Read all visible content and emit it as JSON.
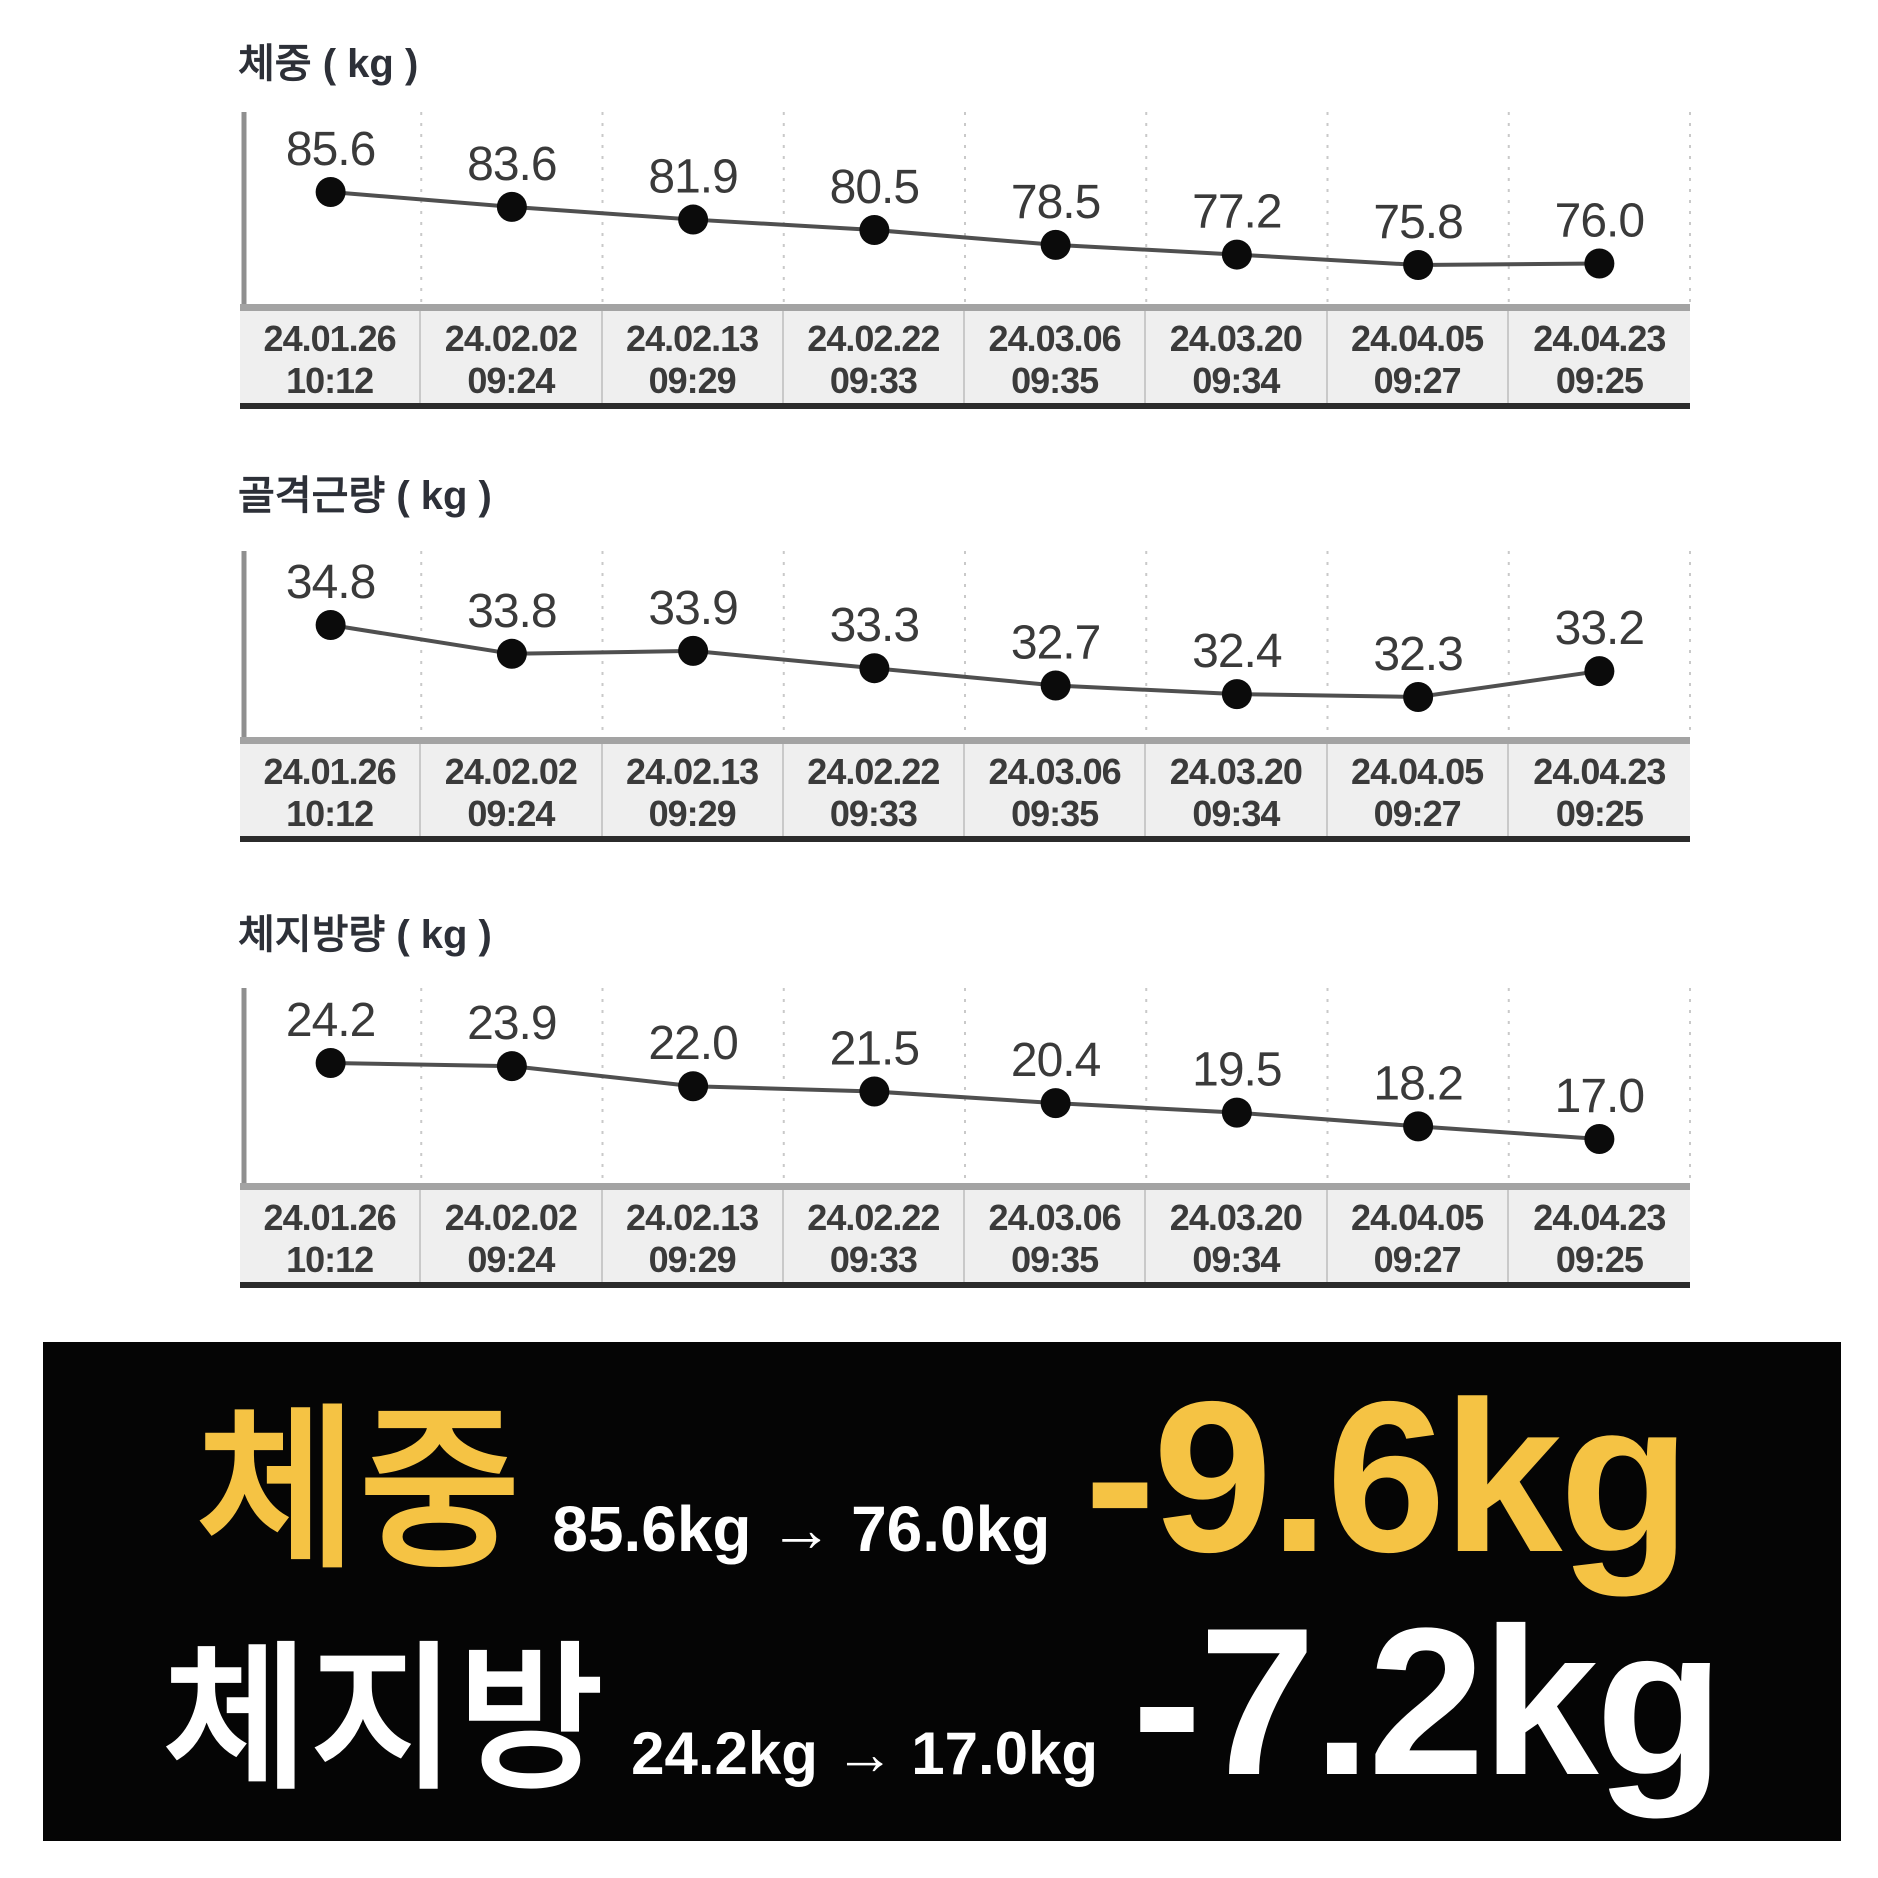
{
  "axis": {
    "dates": [
      "24.01.26",
      "24.02.02",
      "24.02.13",
      "24.02.22",
      "24.03.06",
      "24.03.20",
      "24.04.05",
      "24.04.23"
    ],
    "times": [
      "10:12",
      "09:24",
      "09:29",
      "09:33",
      "09:35",
      "09:34",
      "09:27",
      "09:25"
    ]
  },
  "chart_data": [
    {
      "type": "line",
      "title": "체중 ( kg )",
      "unit": "kg",
      "categories": [
        "24.01.26 10:12",
        "24.02.02 09:24",
        "24.02.13 09:29",
        "24.02.22 09:33",
        "24.03.06 09:35",
        "24.03.20 09:34",
        "24.04.05 09:27",
        "24.04.23 09:25"
      ],
      "values": [
        85.6,
        83.6,
        81.9,
        80.5,
        78.5,
        77.2,
        75.8,
        76.0
      ],
      "labels": [
        "85.6",
        "83.6",
        "81.9",
        "80.5",
        "78.5",
        "77.2",
        "75.8",
        "76.0"
      ],
      "ylim": [
        75.8,
        85.6
      ],
      "grid": "dotted-vertical",
      "legend": "none"
    },
    {
      "type": "line",
      "title": "골격근량 ( kg )",
      "unit": "kg",
      "categories": [
        "24.01.26 10:12",
        "24.02.02 09:24",
        "24.02.13 09:29",
        "24.02.22 09:33",
        "24.03.06 09:35",
        "24.03.20 09:34",
        "24.04.05 09:27",
        "24.04.23 09:25"
      ],
      "values": [
        34.8,
        33.8,
        33.9,
        33.3,
        32.7,
        32.4,
        32.3,
        33.2
      ],
      "labels": [
        "34.8",
        "33.8",
        "33.9",
        "33.3",
        "32.7",
        "32.4",
        "32.3",
        "33.2"
      ],
      "ylim": [
        32.3,
        34.8
      ],
      "grid": "dotted-vertical",
      "legend": "none"
    },
    {
      "type": "line",
      "title": "체지방량 ( kg )",
      "unit": "kg",
      "categories": [
        "24.01.26 10:12",
        "24.02.02 09:24",
        "24.02.13 09:29",
        "24.02.22 09:33",
        "24.03.06 09:35",
        "24.03.20 09:34",
        "24.04.05 09:27",
        "24.04.23 09:25"
      ],
      "values": [
        24.2,
        23.9,
        22.0,
        21.5,
        20.4,
        19.5,
        18.2,
        17.0
      ],
      "labels": [
        "24.2",
        "23.9",
        "22.0",
        "21.5",
        "20.4",
        "19.5",
        "18.2",
        "17.0"
      ],
      "ylim": [
        17.0,
        24.2
      ],
      "grid": "dotted-vertical",
      "legend": "none"
    }
  ],
  "summary": {
    "panel_color": "#050505",
    "rows": [
      {
        "label": "체중",
        "range": "85.6kg → 76.0kg",
        "delta": "-9.6kg",
        "label_color": "#F5C344",
        "range_color": "#FFFFFF",
        "delta_color": "#F5C344"
      },
      {
        "label": "체지방",
        "range": "24.2kg → 17.0kg",
        "delta": "-7.2kg",
        "label_color": "#FFFFFF",
        "range_color": "#FFFFFF",
        "delta_color": "#FFFFFF"
      }
    ]
  },
  "colors": {
    "accent_yellow": "#F5C344",
    "line": "#4f4f4f",
    "dot": "#0b0b0b",
    "gridline": "#c9c9c9",
    "axis": "#8f8f8f",
    "value_label": "#3a3a3a",
    "title_text": "#2d3038",
    "date_text": "#3a3a3a",
    "table_bg": "#efefef"
  }
}
